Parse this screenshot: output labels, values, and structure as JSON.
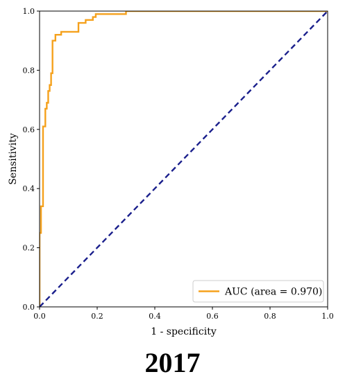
{
  "caption": "2017",
  "chart_data": {
    "type": "line",
    "xlabel": "1 - specificity",
    "ylabel": "Sensitivity",
    "xlim": [
      0.0,
      1.0
    ],
    "ylim": [
      0.0,
      1.0
    ],
    "xticks": [
      "0.0",
      "0.2",
      "0.4",
      "0.6",
      "0.8",
      "1.0"
    ],
    "yticks": [
      "0.0",
      "0.2",
      "0.4",
      "0.6",
      "0.8",
      "1.0"
    ],
    "grid": false,
    "legend_position": "bottom-right",
    "series": [
      {
        "name": "AUC (area = 0.970)",
        "color": "#f5a11c",
        "style": "solid",
        "points": [
          [
            0.0,
            0.0
          ],
          [
            0.0,
            0.25
          ],
          [
            0.005,
            0.25
          ],
          [
            0.005,
            0.34
          ],
          [
            0.012,
            0.34
          ],
          [
            0.012,
            0.61
          ],
          [
            0.02,
            0.61
          ],
          [
            0.02,
            0.67
          ],
          [
            0.025,
            0.67
          ],
          [
            0.025,
            0.69
          ],
          [
            0.03,
            0.69
          ],
          [
            0.03,
            0.73
          ],
          [
            0.035,
            0.73
          ],
          [
            0.035,
            0.75
          ],
          [
            0.04,
            0.75
          ],
          [
            0.04,
            0.79
          ],
          [
            0.045,
            0.79
          ],
          [
            0.045,
            0.9
          ],
          [
            0.055,
            0.9
          ],
          [
            0.055,
            0.92
          ],
          [
            0.075,
            0.92
          ],
          [
            0.075,
            0.93
          ],
          [
            0.135,
            0.93
          ],
          [
            0.135,
            0.96
          ],
          [
            0.16,
            0.96
          ],
          [
            0.16,
            0.97
          ],
          [
            0.185,
            0.97
          ],
          [
            0.185,
            0.98
          ],
          [
            0.195,
            0.98
          ],
          [
            0.195,
            0.99
          ],
          [
            0.3,
            0.99
          ],
          [
            0.3,
            1.0
          ],
          [
            1.0,
            1.0
          ]
        ]
      },
      {
        "color": "#1a1f8c",
        "style": "dashed",
        "points": [
          [
            0.0,
            0.0
          ],
          [
            1.0,
            1.0
          ]
        ]
      }
    ]
  }
}
